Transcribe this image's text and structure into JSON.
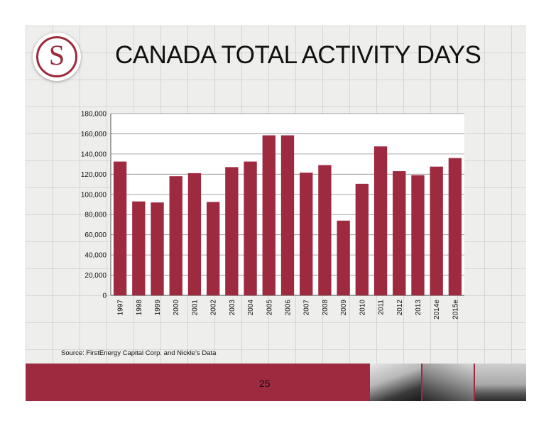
{
  "header": {
    "logo_letter": "S",
    "title": "CANADA TOTAL ACTIVITY DAYS"
  },
  "colors": {
    "bar": "#9e2a40",
    "accent": "#9e2a40"
  },
  "icons": {
    "logo": "company-s-logo-icon"
  },
  "chart_data": {
    "type": "bar",
    "title": "",
    "xlabel": "",
    "ylabel": "",
    "ylim": [
      0,
      180000
    ],
    "yticks": [
      0,
      20000,
      40000,
      60000,
      80000,
      100000,
      120000,
      140000,
      160000,
      180000
    ],
    "ytick_labels": [
      "0",
      "20,000",
      "40,000",
      "60,000",
      "80,000",
      "100,000",
      "120,000",
      "140,000",
      "160,000",
      "180,000"
    ],
    "grid": true,
    "categories": [
      "1997",
      "1998",
      "1999",
      "2000",
      "2001",
      "2002",
      "2003",
      "2004",
      "2005",
      "2006",
      "2007",
      "2008",
      "2009",
      "2010",
      "2011",
      "2012",
      "2013",
      "2014e",
      "2015e"
    ],
    "values": [
      132500,
      93000,
      92000,
      118000,
      121000,
      92500,
      127000,
      132500,
      158500,
      158500,
      121500,
      129000,
      74000,
      110500,
      147500,
      123000,
      119000,
      127500,
      136000
    ]
  },
  "footer": {
    "source": "Source: FirstEnergy Capital Corp. and Nickle’s Data",
    "page_number": "25"
  },
  "photos": [
    "drilling-rig-photo-1",
    "drilling-rig-photo-2",
    "drilling-rig-photo-3"
  ]
}
